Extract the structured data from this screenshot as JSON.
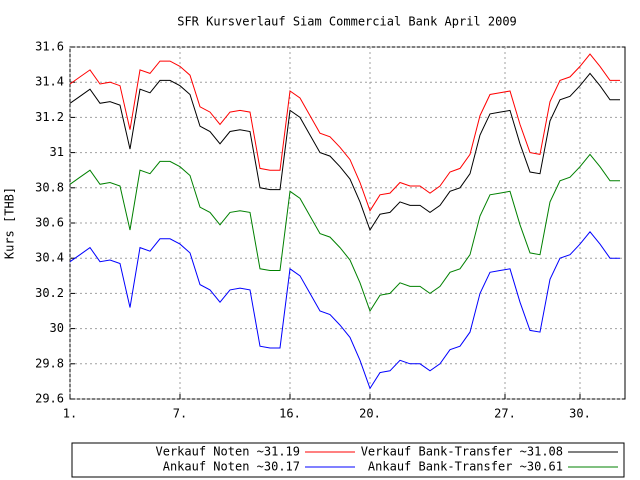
{
  "chart_data": {
    "type": "line",
    "title": "SFR Kursverlauf Siam Commercial Bank April 2009",
    "y_label": "Kurs [THB]",
    "xlim": [
      0,
      111
    ],
    "ylim": [
      29.6,
      31.6
    ],
    "xticks": [
      {
        "value": 0,
        "label": "1."
      },
      {
        "value": 22,
        "label": "7."
      },
      {
        "value": 44,
        "label": "16."
      },
      {
        "value": 60,
        "label": "20."
      },
      {
        "value": 87,
        "label": "27."
      },
      {
        "value": 102,
        "label": "30."
      }
    ],
    "yticks": [
      29.6,
      29.8,
      30,
      30.2,
      30.4,
      30.6,
      30.8,
      31,
      31.2,
      31.4,
      31.6
    ],
    "grid": true,
    "x": [
      0,
      2,
      4,
      6,
      8,
      10,
      12,
      14,
      16,
      18,
      20,
      22,
      24,
      26,
      28,
      30,
      32,
      34,
      36,
      38,
      40,
      42,
      44,
      46,
      48,
      50,
      52,
      54,
      56,
      58,
      60,
      62,
      64,
      66,
      68,
      70,
      72,
      74,
      76,
      78,
      80,
      82,
      84,
      86,
      88,
      90,
      92,
      94,
      96,
      98,
      100,
      102,
      104,
      106,
      108,
      110
    ],
    "series": [
      {
        "name": "Verkauf Noten ~31.19",
        "color": "#ff0000",
        "values": [
          31.39,
          31.43,
          31.47,
          31.39,
          31.4,
          31.38,
          31.13,
          31.47,
          31.45,
          31.52,
          31.52,
          31.49,
          31.44,
          31.26,
          31.23,
          31.16,
          31.23,
          31.24,
          31.23,
          30.91,
          30.9,
          30.9,
          31.35,
          31.31,
          31.21,
          31.11,
          31.09,
          31.03,
          30.96,
          30.83,
          30.67,
          30.76,
          30.77,
          30.83,
          30.81,
          30.81,
          30.77,
          30.81,
          30.89,
          30.91,
          30.99,
          31.21,
          31.33,
          31.34,
          31.35,
          31.16,
          31.0,
          30.99,
          31.29,
          31.41,
          31.43,
          31.49,
          31.56,
          31.49,
          31.41,
          31.41
        ]
      },
      {
        "name": "Verkauf Bank-Transfer ~31.08",
        "color": "#000000",
        "values": [
          31.28,
          31.32,
          31.36,
          31.28,
          31.29,
          31.27,
          31.02,
          31.36,
          31.34,
          31.41,
          31.41,
          31.38,
          31.33,
          31.15,
          31.12,
          31.05,
          31.12,
          31.13,
          31.12,
          30.8,
          30.79,
          30.79,
          31.24,
          31.2,
          31.1,
          31.0,
          30.98,
          30.92,
          30.85,
          30.72,
          30.56,
          30.65,
          30.66,
          30.72,
          30.7,
          30.7,
          30.66,
          30.7,
          30.78,
          30.8,
          30.88,
          31.1,
          31.22,
          31.23,
          31.24,
          31.05,
          30.89,
          30.88,
          31.18,
          31.3,
          31.32,
          31.38,
          31.45,
          31.38,
          31.3,
          31.3
        ]
      },
      {
        "name": "Ankauf Noten ~30.17",
        "color": "#0000ff",
        "values": [
          30.38,
          30.42,
          30.46,
          30.38,
          30.39,
          30.37,
          30.12,
          30.46,
          30.44,
          30.51,
          30.51,
          30.48,
          30.43,
          30.25,
          30.22,
          30.15,
          30.22,
          30.23,
          30.22,
          29.9,
          29.89,
          29.89,
          30.34,
          30.3,
          30.2,
          30.1,
          30.08,
          30.02,
          29.95,
          29.82,
          29.66,
          29.75,
          29.76,
          29.82,
          29.8,
          29.8,
          29.76,
          29.8,
          29.88,
          29.9,
          29.98,
          30.2,
          30.32,
          30.33,
          30.34,
          30.15,
          29.99,
          29.98,
          30.28,
          30.4,
          30.42,
          30.48,
          30.55,
          30.48,
          30.4,
          30.4
        ]
      },
      {
        "name": "Ankauf Bank-Transfer ~30.61",
        "color": "#008000",
        "values": [
          30.82,
          30.86,
          30.9,
          30.82,
          30.83,
          30.81,
          30.56,
          30.9,
          30.88,
          30.95,
          30.95,
          30.92,
          30.87,
          30.69,
          30.66,
          30.59,
          30.66,
          30.67,
          30.66,
          30.34,
          30.33,
          30.33,
          30.78,
          30.74,
          30.64,
          30.54,
          30.52,
          30.46,
          30.39,
          30.26,
          30.1,
          30.19,
          30.2,
          30.26,
          30.24,
          30.24,
          30.2,
          30.24,
          30.32,
          30.34,
          30.42,
          30.64,
          30.76,
          30.77,
          30.78,
          30.59,
          30.43,
          30.42,
          30.72,
          30.84,
          30.86,
          30.92,
          30.99,
          30.92,
          30.84,
          30.84
        ]
      }
    ]
  }
}
